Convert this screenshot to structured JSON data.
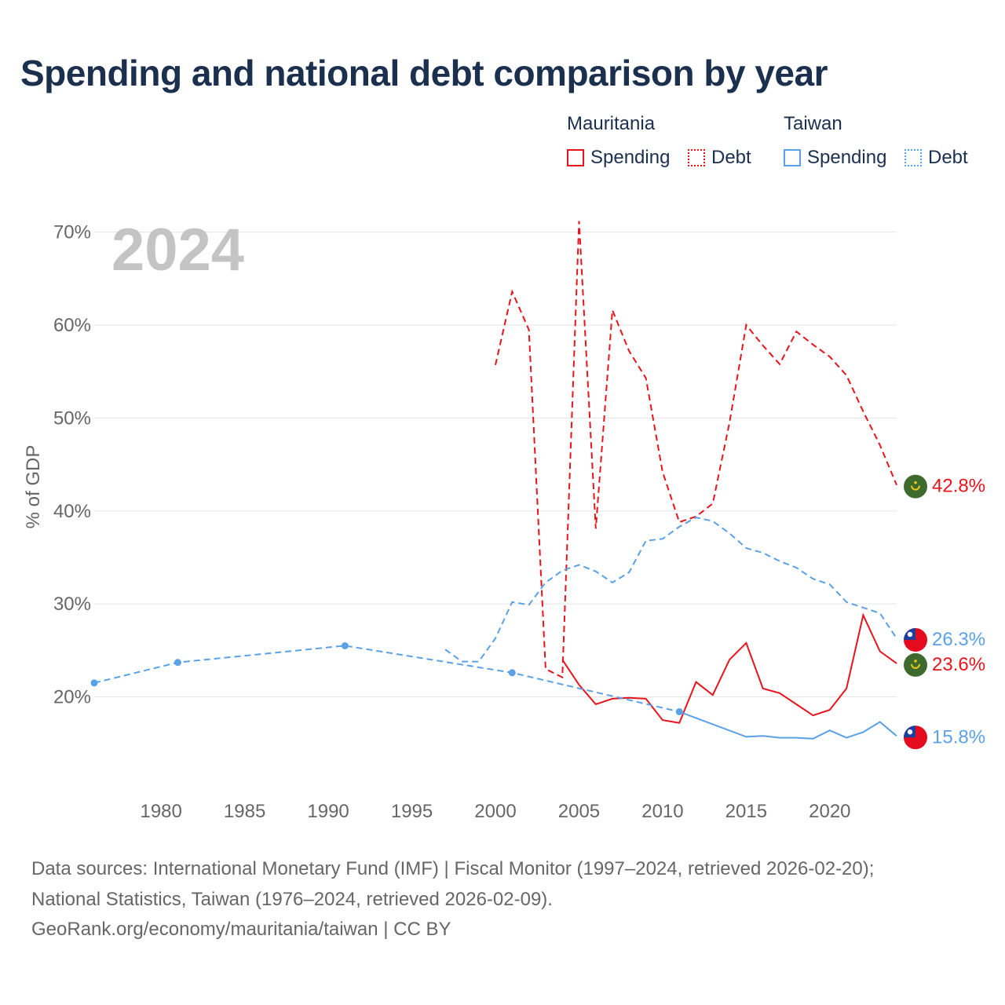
{
  "title": "Spending and national debt comparison by year",
  "legend": {
    "groups": [
      {
        "country": "Mauritania",
        "color": "#e8141b",
        "items": [
          {
            "label": "Spending",
            "style": "solid"
          },
          {
            "label": "Debt",
            "style": "dotted"
          }
        ]
      },
      {
        "country": "Taiwan",
        "color": "#5aa1e6",
        "items": [
          {
            "label": "Spending",
            "style": "solid"
          },
          {
            "label": "Debt",
            "style": "dotted"
          }
        ]
      }
    ]
  },
  "footer": {
    "line1": "Data sources: International Monetary Fund (IMF) | Fiscal Monitor (1997–2024, retrieved 2026-02-20);",
    "line2": "National Statistics, Taiwan (1976–2024, retrieved 2026-02-09).",
    "line3": "GeoRank.org/economy/mauritania/taiwan | CC BY"
  },
  "colors": {
    "mauritania": "#e8141b",
    "taiwan": "#5aa1e6",
    "grid": "#e5e5e5",
    "axis_text": "#666666",
    "year_watermark": "#c4c4c4"
  },
  "chart_data": {
    "type": "line",
    "title": "Spending and national debt comparison by year",
    "year_label": "2024",
    "ylabel": "% of GDP",
    "xlabel": "",
    "xlim": [
      1976,
      2024
    ],
    "ylim": [
      10.5,
      72
    ],
    "x_ticks": [
      1980,
      1985,
      1990,
      1995,
      2000,
      2005,
      2010,
      2015,
      2020
    ],
    "y_ticks": [
      20,
      30,
      40,
      50,
      60,
      70
    ],
    "y_tick_labels": [
      "20%",
      "30%",
      "40%",
      "50%",
      "60%",
      "70%"
    ],
    "grid": true,
    "series": [
      {
        "name": "Mauritania Debt",
        "country": "Mauritania",
        "measure": "Debt",
        "color": "#e8141b",
        "dash": "dashed",
        "points": [
          [
            2000,
            55.7
          ],
          [
            2001,
            63.6
          ],
          [
            2002,
            59.5
          ],
          [
            2003,
            23.0
          ],
          [
            2004,
            22.1
          ],
          [
            2005,
            71.2
          ],
          [
            2006,
            38.1
          ],
          [
            2007,
            61.6
          ],
          [
            2008,
            57.2
          ],
          [
            2009,
            54.3
          ],
          [
            2010,
            44.2
          ],
          [
            2011,
            38.8
          ],
          [
            2012,
            39.4
          ],
          [
            2013,
            40.8
          ],
          [
            2014,
            49.5
          ],
          [
            2015,
            60.0
          ],
          [
            2016,
            57.8
          ],
          [
            2017,
            55.8
          ],
          [
            2018,
            59.3
          ],
          [
            2019,
            57.9
          ],
          [
            2020,
            56.6
          ],
          [
            2021,
            54.6
          ],
          [
            2022,
            50.7
          ],
          [
            2023,
            47.1
          ],
          [
            2024,
            42.8
          ]
        ],
        "end_label": "42.8%"
      },
      {
        "name": "Taiwan Debt",
        "country": "Taiwan",
        "measure": "Debt",
        "color": "#5aa1e6",
        "dash": "dashed",
        "points": [
          [
            1997,
            25.1
          ],
          [
            1998,
            23.8
          ],
          [
            1999,
            23.8
          ],
          [
            2000,
            26.3
          ],
          [
            2001,
            30.2
          ],
          [
            2002,
            29.9
          ],
          [
            2003,
            32.3
          ],
          [
            2004,
            33.6
          ],
          [
            2005,
            34.2
          ],
          [
            2006,
            33.5
          ],
          [
            2007,
            32.3
          ],
          [
            2008,
            33.4
          ],
          [
            2009,
            36.8
          ],
          [
            2010,
            37.0
          ],
          [
            2011,
            38.3
          ],
          [
            2012,
            39.3
          ],
          [
            2013,
            38.9
          ],
          [
            2014,
            37.6
          ],
          [
            2015,
            36.0
          ],
          [
            2016,
            35.5
          ],
          [
            2017,
            34.6
          ],
          [
            2018,
            33.9
          ],
          [
            2019,
            32.7
          ],
          [
            2020,
            32.1
          ],
          [
            2021,
            30.2
          ],
          [
            2022,
            29.6
          ],
          [
            2023,
            29.0
          ],
          [
            2024,
            26.3
          ]
        ],
        "end_label": "26.3%"
      },
      {
        "name": "Mauritania Spending",
        "country": "Mauritania",
        "measure": "Spending",
        "color": "#e8141b",
        "dash": "solid",
        "points": [
          [
            2004,
            24.0
          ],
          [
            2005,
            21.3
          ],
          [
            2006,
            19.2
          ],
          [
            2007,
            19.8
          ],
          [
            2008,
            19.9
          ],
          [
            2009,
            19.8
          ],
          [
            2010,
            17.5
          ],
          [
            2011,
            17.2
          ],
          [
            2012,
            21.6
          ],
          [
            2013,
            20.2
          ],
          [
            2014,
            24.0
          ],
          [
            2015,
            25.8
          ],
          [
            2016,
            20.9
          ],
          [
            2017,
            20.4
          ],
          [
            2018,
            19.2
          ],
          [
            2019,
            18.0
          ],
          [
            2020,
            18.6
          ],
          [
            2021,
            20.9
          ],
          [
            2022,
            28.8
          ],
          [
            2023,
            24.9
          ],
          [
            2024,
            23.6
          ]
        ],
        "end_label": "23.6%"
      },
      {
        "name": "Taiwan Spending",
        "country": "Taiwan",
        "measure": "Spending",
        "color": "#5aa1e6",
        "dash": "dashed-then-solid",
        "sparse_points": [
          [
            1976,
            21.5
          ],
          [
            1981,
            23.7
          ],
          [
            1991,
            25.5
          ],
          [
            2001,
            22.6
          ],
          [
            2011,
            18.4
          ]
        ],
        "points": [
          [
            2011,
            18.4
          ],
          [
            2015,
            15.7
          ],
          [
            2016,
            15.8
          ],
          [
            2017,
            15.6
          ],
          [
            2018,
            15.6
          ],
          [
            2019,
            15.5
          ],
          [
            2020,
            16.4
          ],
          [
            2021,
            15.6
          ],
          [
            2022,
            16.2
          ],
          [
            2023,
            17.3
          ],
          [
            2024,
            15.8
          ]
        ],
        "end_label": "15.8%"
      }
    ]
  }
}
